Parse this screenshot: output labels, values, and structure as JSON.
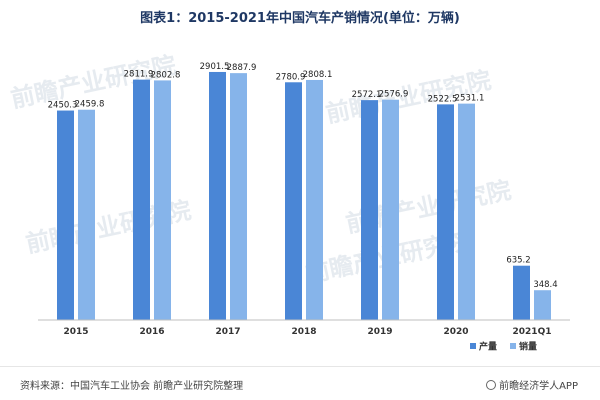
{
  "chart_data": {
    "type": "bar",
    "title": "图表1：2015-2021年中国汽车产销情况(单位：万辆)",
    "categories": [
      "2015",
      "2016",
      "2017",
      "2018",
      "2019",
      "2020",
      "2021Q1"
    ],
    "series": [
      {
        "name": "产量",
        "values": [
          2450.3,
          2811.9,
          2901.5,
          2780.9,
          2572.1,
          2522.5,
          635.2
        ]
      },
      {
        "name": "销量",
        "values": [
          2459.8,
          2802.8,
          2887.9,
          2808.1,
          2576.9,
          2531.1,
          348.4
        ]
      }
    ],
    "ylim": [
      0,
      3100
    ],
    "grid": false,
    "legend": "bottom-right",
    "colors": {
      "产量": "#4a86d6",
      "销量": "#86b4ea"
    }
  },
  "footer": {
    "source": "资料来源：中国汽车工业协会 前瞻产业研究院整理",
    "brand": "前瞻经济学人APP"
  },
  "watermark": "前瞻产业研究院"
}
